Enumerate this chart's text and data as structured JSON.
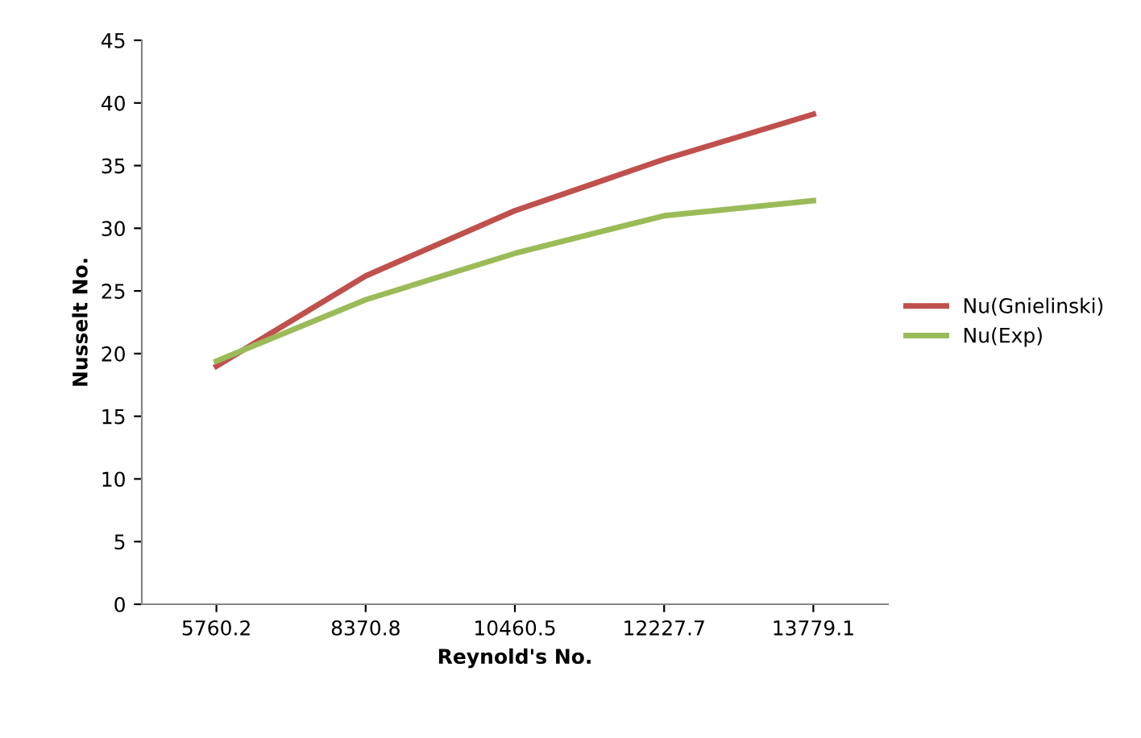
{
  "chart_data": {
    "type": "line",
    "xlabel": "Reynold's No.",
    "ylabel": "Nusselt No.",
    "categories": [
      "5760.2",
      "8370.8",
      "10460.5",
      "12227.7",
      "13779.1"
    ],
    "series": [
      {
        "name": "Nu(Gnielinski)",
        "color": "#c0504d",
        "values": [
          19.0,
          26.2,
          31.4,
          35.5,
          39.1
        ]
      },
      {
        "name": "Nu(Exp)",
        "color": "#9bbb59",
        "values": [
          19.4,
          24.3,
          28.0,
          31.0,
          32.2
        ]
      }
    ],
    "ylim": [
      0,
      45
    ],
    "yticks": [
      0,
      5,
      10,
      15,
      20,
      25,
      30,
      35,
      40,
      45
    ],
    "grid": false,
    "legend": "right",
    "marker": "none",
    "line_style": "solid"
  }
}
